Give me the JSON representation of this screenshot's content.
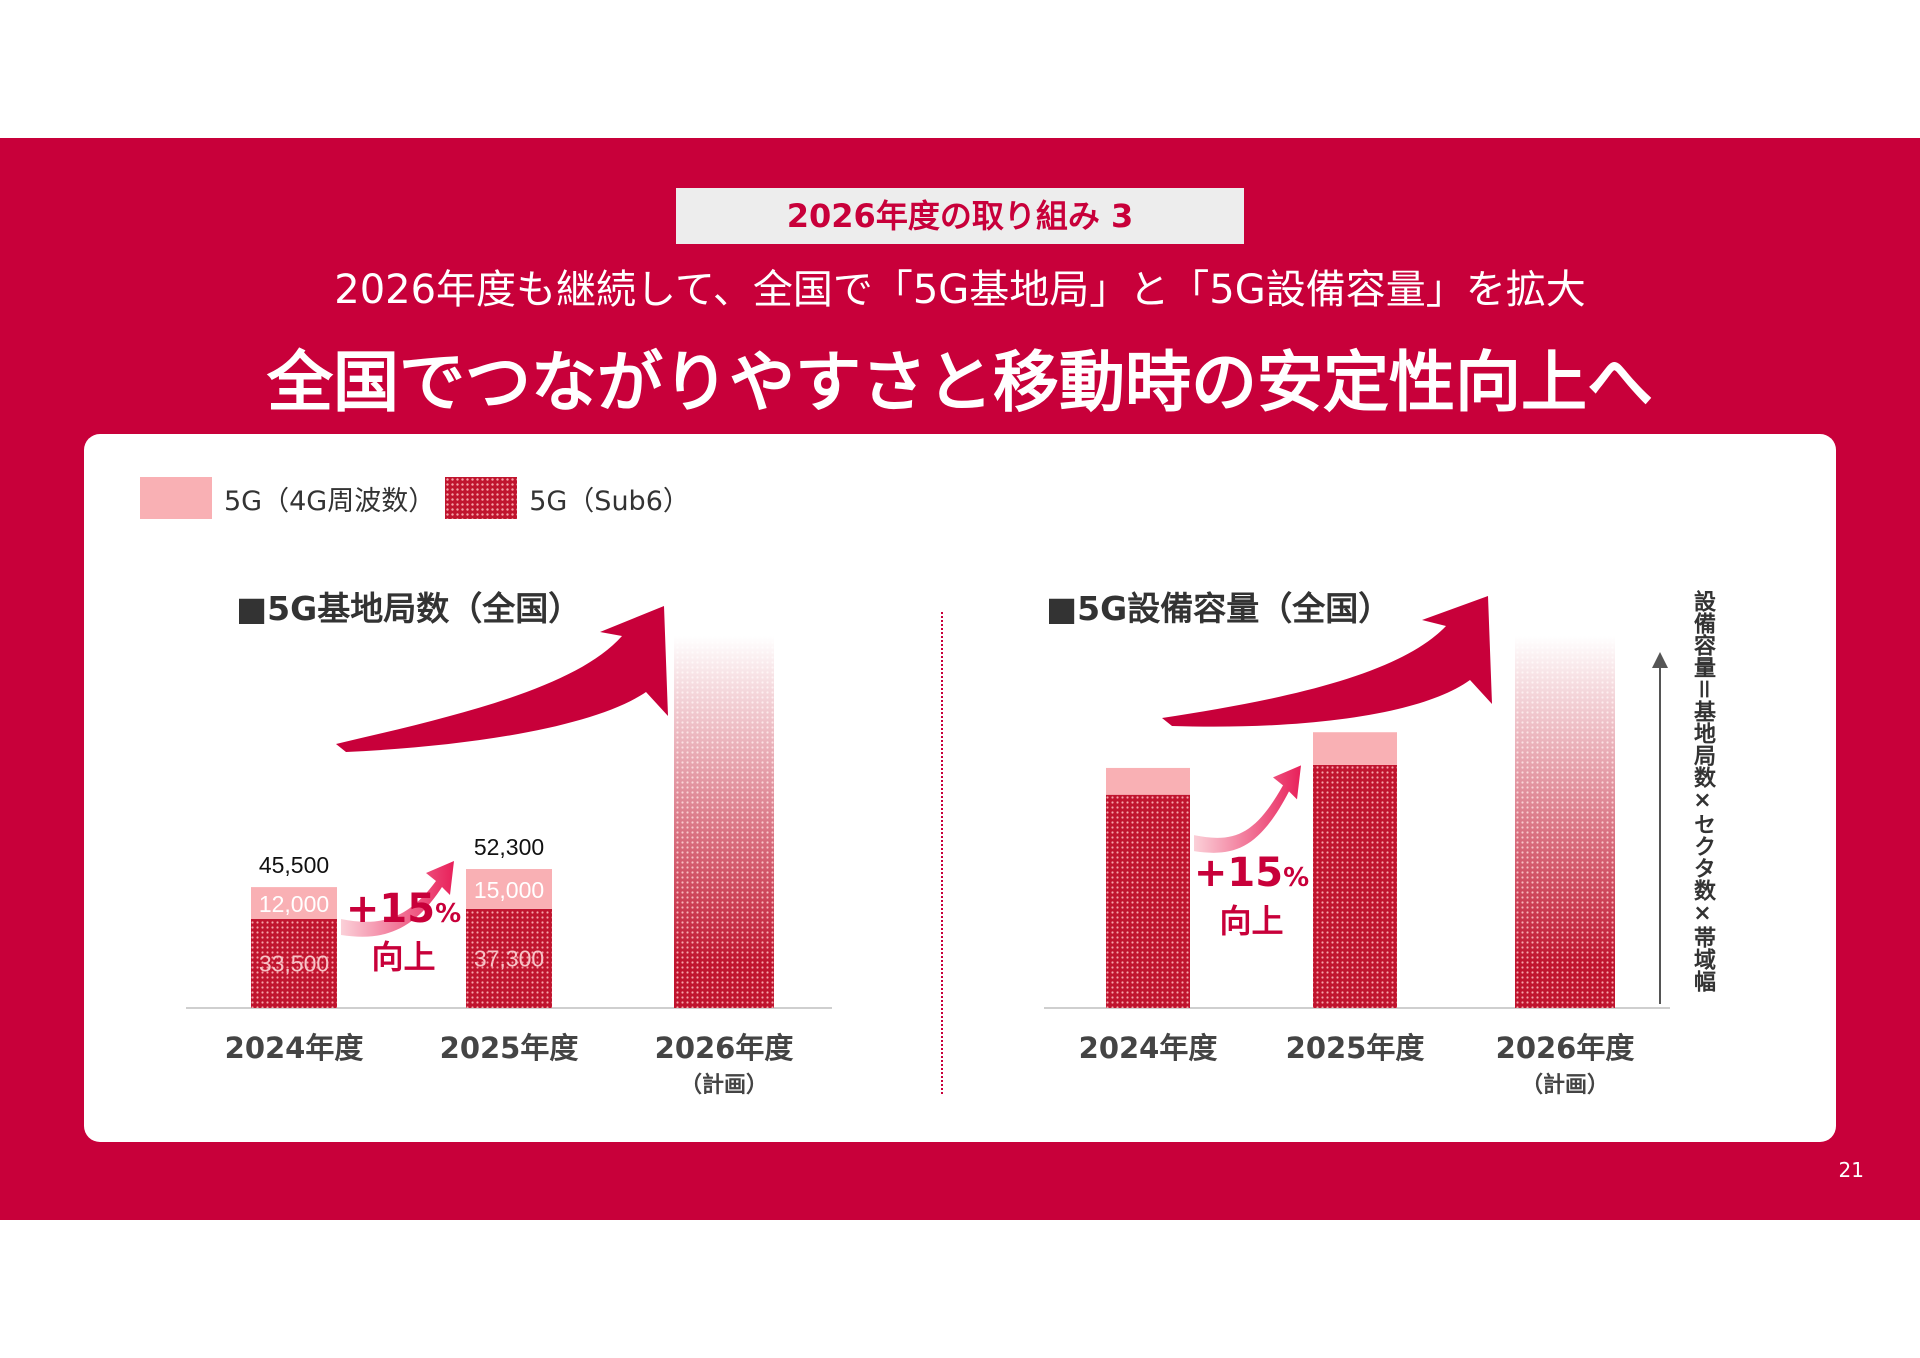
{
  "header": {
    "tag": "2026年度の取り組み 3",
    "subtitle": "2026年度も継続して、全国で「5G基地局」と「5G設備容量」を拡大",
    "title": "全国でつながりやすさと移動時の安定性向上へ"
  },
  "legend": [
    {
      "label": "5G（4G周波数）",
      "color": "#f9b0b4"
    },
    {
      "label": "5G（Sub6）",
      "color": "#c0142e"
    }
  ],
  "axis_note": "設備容量＝基地局数×セクタ数×帯域幅",
  "page_number": "21",
  "colors": {
    "brand": "#c8003a",
    "light_segment": "#f9b0b4",
    "dark_segment": "#c0142e"
  },
  "chart_data": [
    {
      "type": "bar",
      "stacked": true,
      "title": "■5G基地局数（全国）",
      "categories": [
        "2024年度",
        "2025年度",
        "2026年度"
      ],
      "category_notes": [
        "",
        "",
        "（計画）"
      ],
      "series": [
        {
          "name": "5G（Sub6）",
          "values": [
            33500,
            37300,
            null
          ],
          "labels": [
            "33,500",
            "37,300",
            ""
          ]
        },
        {
          "name": "5G（4G周波数）",
          "values": [
            12000,
            15000,
            null
          ],
          "labels": [
            "12,000",
            "15,000",
            ""
          ]
        }
      ],
      "totals": [
        45500,
        52300,
        null
      ],
      "total_labels": [
        "45,500",
        "52,300",
        ""
      ],
      "planned_value": 140000,
      "ylim": [
        0,
        140000
      ],
      "annotation": {
        "value": "+15",
        "unit": "%",
        "text": "向上"
      }
    },
    {
      "type": "bar",
      "stacked": true,
      "title": "■5G設備容量（全国）",
      "categories": [
        "2024年度",
        "2025年度",
        "2026年度"
      ],
      "category_notes": [
        "",
        "",
        "（計画）"
      ],
      "series": [
        {
          "name": "5G（Sub6）",
          "values": [
            215,
            245,
            null
          ]
        },
        {
          "name": "5G（4G周波数）",
          "values": [
            27,
            33,
            null
          ]
        }
      ],
      "planned_value": 375,
      "ylim": [
        0,
        375
      ],
      "annotation": {
        "value": "+15",
        "unit": "%",
        "text": "向上"
      }
    }
  ]
}
